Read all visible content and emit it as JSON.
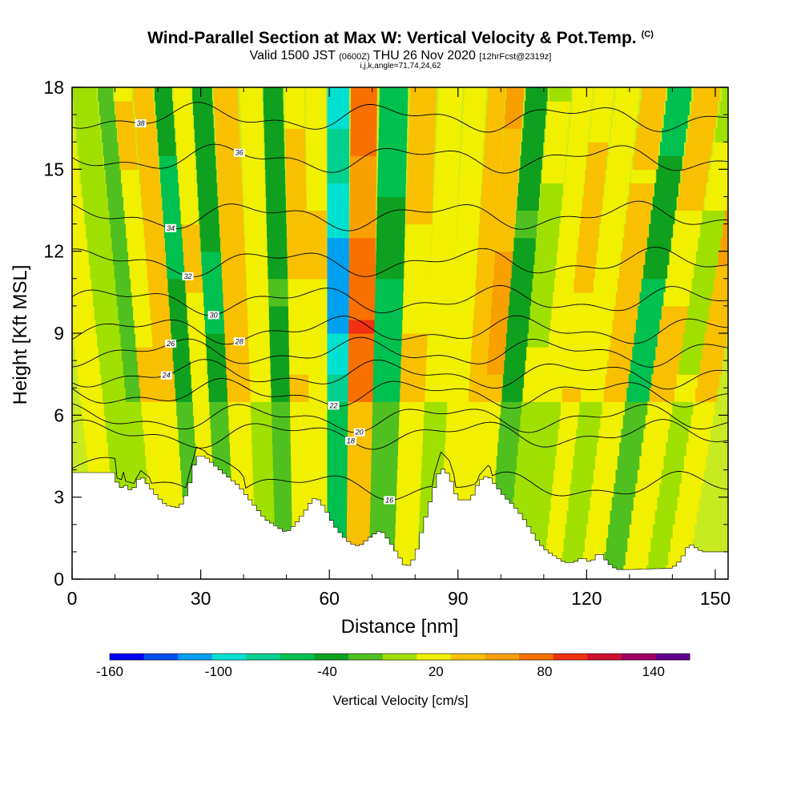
{
  "chart_data": {
    "type": "heatmap",
    "title": "Wind-Parallel Section at Max W: Vertical Velocity & Pot.Temp.",
    "copyright": "(C)",
    "valid_main": "Valid 1500 JST",
    "valid_zulu": "(0600Z)",
    "valid_date": "THU 26 Nov 2020",
    "forecast": "[12hrFcst@2319z]",
    "indices": "i,j,k,angle=71,74,24,62",
    "xlabel": "Distance [nm]",
    "ylabel": "Height [Kft MSL]",
    "xlim": [
      0,
      153
    ],
    "ylim": [
      0,
      18
    ],
    "xticks": [
      0,
      30,
      60,
      90,
      120,
      150
    ],
    "yticks": [
      0,
      3,
      6,
      9,
      12,
      15,
      18
    ],
    "colorbar": {
      "title": "Vertical Velocity [cm/s]",
      "labels": [
        "-160",
        "-100",
        "-40",
        "20",
        "80",
        "140"
      ],
      "label_values": [
        -160,
        -100,
        -40,
        20,
        80,
        140
      ],
      "range": [
        -160,
        160
      ],
      "colors": [
        "#0000f0",
        "#0050f0",
        "#00a0f0",
        "#00e0d0",
        "#00d090",
        "#00c050",
        "#10a020",
        "#50c020",
        "#a0e000",
        "#f0f000",
        "#f8c000",
        "#f8a000",
        "#f87000",
        "#f03010",
        "#d01030",
        "#a00060",
        "#600090"
      ]
    },
    "velocity_columns": [
      {
        "x": 2,
        "w": 25
      },
      {
        "x": 9,
        "w": 5
      },
      {
        "x": 13,
        "w": -15
      },
      {
        "x": 16,
        "w": 30
      },
      {
        "x": 21,
        "w": 45
      },
      {
        "x": 25,
        "w": -55
      },
      {
        "x": 29,
        "w": 30
      },
      {
        "x": 33,
        "w": -50
      },
      {
        "x": 38,
        "w": 45
      },
      {
        "x": 44,
        "w": 20
      },
      {
        "x": 48,
        "w": -40
      },
      {
        "x": 53,
        "w": 35
      },
      {
        "x": 57,
        "w": 30
      },
      {
        "x": 62,
        "w": -115
      },
      {
        "x": 67,
        "w": 85
      },
      {
        "x": 74,
        "w": -60
      },
      {
        "x": 80,
        "w": 35
      },
      {
        "x": 86,
        "w": 15
      },
      {
        "x": 91,
        "w": 25
      },
      {
        "x": 96,
        "w": 45
      },
      {
        "x": 99,
        "w": 55
      },
      {
        "x": 104,
        "w": -40
      },
      {
        "x": 109,
        "w": 10
      },
      {
        "x": 114,
        "w": 20
      },
      {
        "x": 118,
        "w": 35
      },
      {
        "x": 123,
        "w": 20
      },
      {
        "x": 129,
        "w": 40
      },
      {
        "x": 134,
        "w": -55
      },
      {
        "x": 140,
        "w": 35
      },
      {
        "x": 146,
        "w": 10
      },
      {
        "x": 150,
        "w": 55
      }
    ],
    "terrain": [
      [
        0,
        3.9
      ],
      [
        10,
        3.9
      ],
      [
        11,
        3.2
      ],
      [
        12,
        3.5
      ],
      [
        14,
        3.2
      ],
      [
        16,
        3.8
      ],
      [
        18,
        3.4
      ],
      [
        20,
        3.0
      ],
      [
        22,
        2.7
      ],
      [
        25,
        2.6
      ],
      [
        27,
        3.2
      ],
      [
        29,
        4.5
      ],
      [
        31,
        4.5
      ],
      [
        33,
        4.2
      ],
      [
        36,
        3.8
      ],
      [
        39,
        3.4
      ],
      [
        42,
        2.8
      ],
      [
        45,
        2.2
      ],
      [
        48,
        1.9
      ],
      [
        50,
        1.7
      ],
      [
        52,
        2.0
      ],
      [
        54,
        2.4
      ],
      [
        56,
        2.9
      ],
      [
        57,
        3.0
      ],
      [
        59,
        2.6
      ],
      [
        61,
        2.0
      ],
      [
        63,
        1.6
      ],
      [
        65,
        1.3
      ],
      [
        67,
        1.2
      ],
      [
        70,
        1.6
      ],
      [
        72,
        1.8
      ],
      [
        74,
        1.4
      ],
      [
        76,
        0.9
      ],
      [
        78,
        0.4
      ],
      [
        80,
        0.8
      ],
      [
        82,
        2.0
      ],
      [
        84,
        3.1
      ],
      [
        86,
        4.1
      ],
      [
        88,
        3.8
      ],
      [
        90,
        2.9
      ],
      [
        93,
        2.9
      ],
      [
        95,
        3.6
      ],
      [
        97,
        3.8
      ],
      [
        99,
        3.4
      ],
      [
        101,
        3.0
      ],
      [
        103,
        2.7
      ],
      [
        105,
        2.3
      ],
      [
        107,
        1.8
      ],
      [
        109,
        1.3
      ],
      [
        111,
        1.0
      ],
      [
        113,
        0.8
      ],
      [
        115,
        0.6
      ],
      [
        117,
        0.6
      ],
      [
        119,
        0.8
      ],
      [
        121,
        0.6
      ],
      [
        123,
        1.0
      ],
      [
        125,
        0.6
      ],
      [
        127,
        0.35
      ],
      [
        130,
        0.35
      ],
      [
        140,
        0.4
      ],
      [
        142,
        0.7
      ],
      [
        144,
        1.3
      ],
      [
        147,
        1.0
      ],
      [
        153,
        1.0
      ]
    ],
    "theta_contours": [
      {
        "label": "16",
        "base": 3.4,
        "label_x": 74
      },
      {
        "label": "18",
        "base": 5.3,
        "label_x": 65
      },
      {
        "label": "20",
        "base": 5.9,
        "label_x": 67
      },
      {
        "label": "22",
        "base": 6.8,
        "label_x": 61
      },
      {
        "label": "24",
        "base": 7.5,
        "label_x": 22
      },
      {
        "label": "26",
        "base": 8.3,
        "label_x": 23
      },
      {
        "label": "28",
        "base": 9.1,
        "label_x": 39
      },
      {
        "label": "30",
        "base": 10.2,
        "label_x": 33
      },
      {
        "label": "32",
        "base": 11.6,
        "label_x": 27
      },
      {
        "label": "34",
        "base": 13.3,
        "label_x": 23
      },
      {
        "label": "36",
        "base": 15.4,
        "label_x": 39
      },
      {
        "label": "38",
        "base": 16.9,
        "label_x": 16
      }
    ]
  }
}
